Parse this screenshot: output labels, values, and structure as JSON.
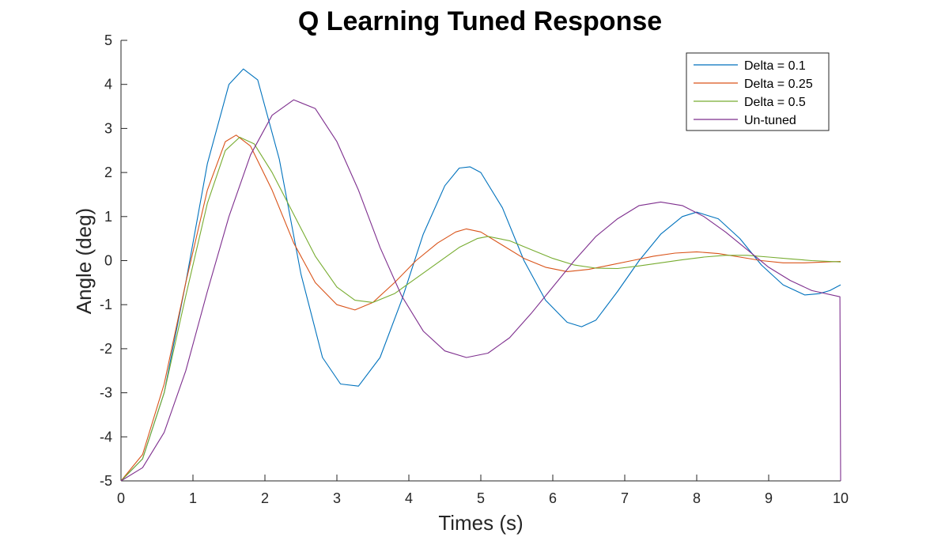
{
  "chart_data": {
    "type": "line",
    "title": "Q Learning Tuned Response",
    "xlabel": "Times (s)",
    "ylabel": "Angle (deg)",
    "xlim": [
      0,
      10
    ],
    "ylim": [
      -5,
      5
    ],
    "xticks": [
      "0",
      "1",
      "2",
      "3",
      "4",
      "5",
      "6",
      "7",
      "8",
      "9",
      "10"
    ],
    "yticks": [
      "-5",
      "-4",
      "-3",
      "-2",
      "-1",
      "0",
      "1",
      "2",
      "3",
      "4",
      "5"
    ],
    "grid": false,
    "legend_position": "top-right",
    "series": [
      {
        "name": "Delta = 0.1",
        "color": "#0072BD",
        "points": [
          [
            0,
            -5
          ],
          [
            0.3,
            -4.5
          ],
          [
            0.6,
            -3
          ],
          [
            0.9,
            -0.5
          ],
          [
            1.2,
            2.2
          ],
          [
            1.5,
            4
          ],
          [
            1.7,
            4.35
          ],
          [
            1.9,
            4.1
          ],
          [
            2.2,
            2.3
          ],
          [
            2.5,
            -0.3
          ],
          [
            2.8,
            -2.2
          ],
          [
            3.05,
            -2.8
          ],
          [
            3.3,
            -2.85
          ],
          [
            3.6,
            -2.2
          ],
          [
            3.9,
            -0.9
          ],
          [
            4.2,
            0.6
          ],
          [
            4.5,
            1.7
          ],
          [
            4.7,
            2.1
          ],
          [
            4.85,
            2.13
          ],
          [
            5.0,
            2
          ],
          [
            5.3,
            1.2
          ],
          [
            5.6,
            0
          ],
          [
            5.9,
            -0.9
          ],
          [
            6.2,
            -1.4
          ],
          [
            6.4,
            -1.5
          ],
          [
            6.6,
            -1.35
          ],
          [
            6.9,
            -0.7
          ],
          [
            7.2,
            0
          ],
          [
            7.5,
            0.6
          ],
          [
            7.8,
            1
          ],
          [
            8.0,
            1.1
          ],
          [
            8.3,
            0.95
          ],
          [
            8.6,
            0.5
          ],
          [
            8.9,
            -0.1
          ],
          [
            9.2,
            -0.55
          ],
          [
            9.5,
            -0.78
          ],
          [
            9.7,
            -0.75
          ],
          [
            9.85,
            -0.68
          ],
          [
            10,
            -0.55
          ]
        ]
      },
      {
        "name": "Delta = 0.25",
        "color": "#D95319",
        "points": [
          [
            0,
            -5
          ],
          [
            0.3,
            -4.4
          ],
          [
            0.6,
            -2.8
          ],
          [
            0.9,
            -0.5
          ],
          [
            1.2,
            1.6
          ],
          [
            1.45,
            2.7
          ],
          [
            1.6,
            2.85
          ],
          [
            1.8,
            2.6
          ],
          [
            2.1,
            1.6
          ],
          [
            2.4,
            0.4
          ],
          [
            2.7,
            -0.5
          ],
          [
            3.0,
            -1
          ],
          [
            3.25,
            -1.12
          ],
          [
            3.5,
            -0.95
          ],
          [
            3.8,
            -0.5
          ],
          [
            4.1,
            0
          ],
          [
            4.4,
            0.4
          ],
          [
            4.65,
            0.65
          ],
          [
            4.8,
            0.72
          ],
          [
            5.0,
            0.65
          ],
          [
            5.3,
            0.35
          ],
          [
            5.6,
            0.05
          ],
          [
            5.9,
            -0.15
          ],
          [
            6.2,
            -0.25
          ],
          [
            6.5,
            -0.2
          ],
          [
            6.8,
            -0.1
          ],
          [
            7.1,
            0
          ],
          [
            7.4,
            0.1
          ],
          [
            7.7,
            0.17
          ],
          [
            8.0,
            0.2
          ],
          [
            8.3,
            0.16
          ],
          [
            8.6,
            0.08
          ],
          [
            8.9,
            0
          ],
          [
            9.2,
            -0.05
          ],
          [
            9.5,
            -0.05
          ],
          [
            9.8,
            -0.03
          ],
          [
            10,
            -0.02
          ]
        ]
      },
      {
        "name": "Delta = 0.5",
        "color": "#77AC30",
        "points": [
          [
            0,
            -5
          ],
          [
            0.3,
            -4.5
          ],
          [
            0.6,
            -3
          ],
          [
            0.9,
            -0.8
          ],
          [
            1.2,
            1.3
          ],
          [
            1.45,
            2.5
          ],
          [
            1.65,
            2.8
          ],
          [
            1.85,
            2.65
          ],
          [
            2.1,
            2
          ],
          [
            2.4,
            1.05
          ],
          [
            2.7,
            0.1
          ],
          [
            3.0,
            -0.6
          ],
          [
            3.25,
            -0.9
          ],
          [
            3.5,
            -0.95
          ],
          [
            3.8,
            -0.75
          ],
          [
            4.1,
            -0.4
          ],
          [
            4.4,
            -0.05
          ],
          [
            4.7,
            0.3
          ],
          [
            4.95,
            0.5
          ],
          [
            5.1,
            0.55
          ],
          [
            5.4,
            0.45
          ],
          [
            5.7,
            0.25
          ],
          [
            6.0,
            0.05
          ],
          [
            6.3,
            -0.1
          ],
          [
            6.6,
            -0.17
          ],
          [
            6.9,
            -0.18
          ],
          [
            7.2,
            -0.12
          ],
          [
            7.5,
            -0.05
          ],
          [
            7.8,
            0.02
          ],
          [
            8.1,
            0.08
          ],
          [
            8.4,
            0.12
          ],
          [
            8.7,
            0.12
          ],
          [
            9.0,
            0.08
          ],
          [
            9.3,
            0.04
          ],
          [
            9.6,
            0
          ],
          [
            10,
            -0.03
          ]
        ]
      },
      {
        "name": "Un-tuned",
        "color": "#7E2F8E",
        "points": [
          [
            0,
            -5
          ],
          [
            0.3,
            -4.7
          ],
          [
            0.6,
            -3.9
          ],
          [
            0.9,
            -2.5
          ],
          [
            1.2,
            -0.7
          ],
          [
            1.5,
            1
          ],
          [
            1.8,
            2.4
          ],
          [
            2.1,
            3.3
          ],
          [
            2.4,
            3.65
          ],
          [
            2.7,
            3.45
          ],
          [
            3.0,
            2.7
          ],
          [
            3.3,
            1.6
          ],
          [
            3.6,
            0.3
          ],
          [
            3.9,
            -0.8
          ],
          [
            4.2,
            -1.6
          ],
          [
            4.5,
            -2.05
          ],
          [
            4.8,
            -2.2
          ],
          [
            5.1,
            -2.1
          ],
          [
            5.4,
            -1.75
          ],
          [
            5.7,
            -1.2
          ],
          [
            6.0,
            -0.6
          ],
          [
            6.3,
            0
          ],
          [
            6.6,
            0.55
          ],
          [
            6.9,
            0.95
          ],
          [
            7.2,
            1.25
          ],
          [
            7.5,
            1.33
          ],
          [
            7.8,
            1.25
          ],
          [
            8.1,
            1
          ],
          [
            8.4,
            0.65
          ],
          [
            8.7,
            0.25
          ],
          [
            9.0,
            -0.15
          ],
          [
            9.3,
            -0.45
          ],
          [
            9.6,
            -0.68
          ],
          [
            9.99,
            -0.82
          ],
          [
            10,
            -5
          ]
        ]
      }
    ]
  }
}
